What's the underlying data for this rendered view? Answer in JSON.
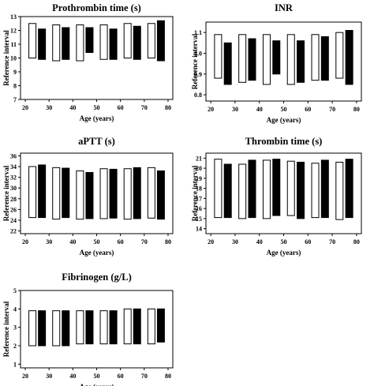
{
  "chart_data": [
    {
      "type": "bar",
      "title": "Prothrombin time (s)",
      "xlabel": "Age (years)",
      "ylabel": "Reference interval",
      "xlim": [
        18,
        82
      ],
      "xticks": [
        "20",
        "30",
        "40",
        "50",
        "60",
        "70",
        "80"
      ],
      "ylim": [
        7,
        13
      ],
      "yticks": [
        "7",
        "8",
        "9",
        "10",
        "11",
        "12",
        "13"
      ],
      "grid": false,
      "series": [
        {
          "color": "#ffffff",
          "x": [
            23,
            33,
            43,
            53,
            63,
            73
          ],
          "low": [
            10.0,
            9.8,
            9.8,
            9.9,
            10.0,
            10.0
          ],
          "high": [
            12.5,
            12.4,
            12.4,
            12.4,
            12.5,
            12.5
          ]
        },
        {
          "color": "#000000",
          "x": [
            27,
            37,
            47,
            57,
            67,
            77
          ],
          "low": [
            9.9,
            9.9,
            10.4,
            9.9,
            9.9,
            9.8
          ],
          "high": [
            12.1,
            12.2,
            12.2,
            12.1,
            12.3,
            12.7
          ]
        }
      ]
    },
    {
      "type": "bar",
      "title": "INR",
      "xlabel": "Age (years)",
      "ylabel": "Reference interval",
      "xlim": [
        18,
        82
      ],
      "xticks": [
        "20",
        "30",
        "40",
        "50",
        "60",
        "70",
        "80"
      ],
      "ylim": [
        0.77,
        1.15
      ],
      "yticks": [
        "0.8",
        "0.9",
        "1.0",
        "1.1"
      ],
      "grid": false,
      "series": [
        {
          "color": "#ffffff",
          "x": [
            23,
            33,
            43,
            53,
            63,
            73
          ],
          "low": [
            0.88,
            0.86,
            0.85,
            0.85,
            0.87,
            0.88
          ],
          "high": [
            1.09,
            1.09,
            1.09,
            1.09,
            1.09,
            1.1
          ]
        },
        {
          "color": "#000000",
          "x": [
            27,
            37,
            47,
            57,
            67,
            77
          ],
          "low": [
            0.85,
            0.87,
            0.9,
            0.86,
            0.87,
            0.85
          ],
          "high": [
            1.05,
            1.07,
            1.06,
            1.06,
            1.08,
            1.11
          ]
        }
      ]
    },
    {
      "type": "bar",
      "title": "aPTT (s)",
      "xlabel": "Age (years)",
      "ylabel": "Reference interval",
      "xlim": [
        18,
        82
      ],
      "xticks": [
        "20",
        "30",
        "40",
        "50",
        "60",
        "70",
        "80"
      ],
      "ylim": [
        21.5,
        36.5
      ],
      "yticks": [
        "22",
        "24",
        "26",
        "28",
        "30",
        "32",
        "34",
        "36"
      ],
      "grid": false,
      "series": [
        {
          "color": "#ffffff",
          "x": [
            23,
            33,
            43,
            53,
            63,
            73
          ],
          "low": [
            24.5,
            24.2,
            24.2,
            24.3,
            24.2,
            24.4
          ],
          "high": [
            34.0,
            33.8,
            33.2,
            33.6,
            33.6,
            33.8
          ]
        },
        {
          "color": "#000000",
          "x": [
            27,
            37,
            47,
            57,
            67,
            77
          ],
          "low": [
            24.5,
            24.5,
            24.3,
            24.4,
            24.3,
            24.2
          ],
          "high": [
            34.3,
            33.7,
            32.9,
            33.5,
            33.8,
            33.2
          ]
        }
      ]
    },
    {
      "type": "bar",
      "title": "Thrombin time (s)",
      "xlabel": "Age (years)",
      "ylabel": "Reference interval",
      "xlim": [
        18,
        82
      ],
      "xticks": [
        "20",
        "30",
        "40",
        "50",
        "60",
        "70",
        "80"
      ],
      "ylim": [
        13.5,
        21.5
      ],
      "yticks": [
        "14",
        "15",
        "16",
        "17",
        "18",
        "19",
        "20",
        "21"
      ],
      "grid": false,
      "series": [
        {
          "color": "#ffffff",
          "x": [
            23,
            33,
            43,
            53,
            63,
            73
          ],
          "low": [
            15.1,
            15.0,
            15.0,
            15.3,
            15.1,
            14.9
          ],
          "high": [
            20.9,
            20.4,
            20.8,
            20.7,
            20.5,
            20.6
          ]
        },
        {
          "color": "#000000",
          "x": [
            27,
            37,
            47,
            57,
            67,
            77
          ],
          "low": [
            15.1,
            15.1,
            15.3,
            15.0,
            15.1,
            15.1
          ],
          "high": [
            20.4,
            20.8,
            20.9,
            20.6,
            20.8,
            20.9
          ]
        }
      ]
    },
    {
      "type": "bar",
      "title": "Fibrinogen (g/L)",
      "xlabel": "Age (years)",
      "ylabel": "Reference interval",
      "xlim": [
        18,
        82
      ],
      "xticks": [
        "20",
        "30",
        "40",
        "50",
        "60",
        "70",
        "80"
      ],
      "ylim": [
        0.8,
        5.0
      ],
      "yticks": [
        "1",
        "2",
        "3",
        "4",
        "5"
      ],
      "grid": false,
      "series": [
        {
          "color": "#ffffff",
          "x": [
            23,
            33,
            43,
            53,
            63,
            73
          ],
          "low": [
            2.0,
            2.0,
            2.1,
            2.1,
            2.1,
            2.1
          ],
          "high": [
            3.9,
            3.9,
            3.9,
            3.9,
            4.0,
            4.0
          ]
        },
        {
          "color": "#000000",
          "x": [
            27,
            37,
            47,
            57,
            67,
            77
          ],
          "low": [
            2.0,
            2.0,
            2.1,
            2.1,
            2.1,
            2.2
          ],
          "high": [
            3.9,
            3.9,
            3.9,
            3.9,
            4.0,
            4.0
          ]
        }
      ]
    }
  ]
}
